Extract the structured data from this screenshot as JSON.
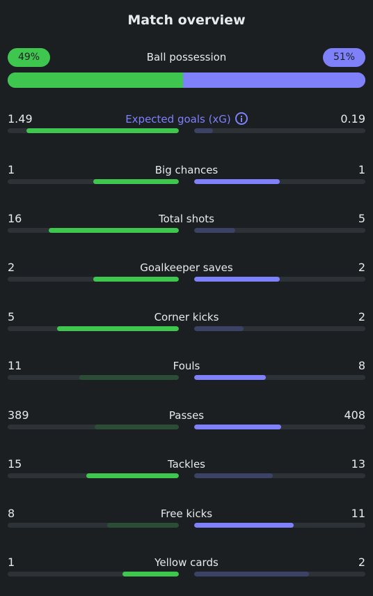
{
  "title": "Match overview",
  "possession": {
    "label": "Ball possession",
    "home": "49%",
    "away": "51%",
    "home_fraction": 0.49,
    "away_fraction": 0.51
  },
  "colors": {
    "home": "#3fc64f",
    "away": "#7f81fb",
    "track": "#2c3236"
  },
  "stats": [
    {
      "label": "Expected goals (xG)",
      "home": "1.49",
      "away": "0.19",
      "home_fill": 0.89,
      "away_fill": 0.11,
      "home_strong": true,
      "away_strong": false,
      "info": true
    },
    {
      "label": "Big chances",
      "home": "1",
      "away": "1",
      "home_fill": 0.5,
      "away_fill": 0.5,
      "home_strong": true,
      "away_strong": true
    },
    {
      "label": "Total shots",
      "home": "16",
      "away": "5",
      "home_fill": 0.76,
      "away_fill": 0.24,
      "home_strong": true,
      "away_strong": false
    },
    {
      "label": "Goalkeeper saves",
      "home": "2",
      "away": "2",
      "home_fill": 0.5,
      "away_fill": 0.5,
      "home_strong": true,
      "away_strong": true
    },
    {
      "label": "Corner kicks",
      "home": "5",
      "away": "2",
      "home_fill": 0.71,
      "away_fill": 0.29,
      "home_strong": true,
      "away_strong": false
    },
    {
      "label": "Fouls",
      "home": "11",
      "away": "8",
      "home_fill": 0.58,
      "away_fill": 0.42,
      "home_strong": false,
      "away_strong": true
    },
    {
      "label": "Passes",
      "home": "389",
      "away": "408",
      "home_fill": 0.49,
      "away_fill": 0.51,
      "home_strong": false,
      "away_strong": true
    },
    {
      "label": "Tackles",
      "home": "15",
      "away": "13",
      "home_fill": 0.54,
      "away_fill": 0.46,
      "home_strong": true,
      "away_strong": false
    },
    {
      "label": "Free kicks",
      "home": "8",
      "away": "11",
      "home_fill": 0.42,
      "away_fill": 0.58,
      "home_strong": false,
      "away_strong": true
    },
    {
      "label": "Yellow cards",
      "home": "1",
      "away": "2",
      "home_fill": 0.33,
      "away_fill": 0.67,
      "home_strong": true,
      "away_strong": false
    }
  ]
}
